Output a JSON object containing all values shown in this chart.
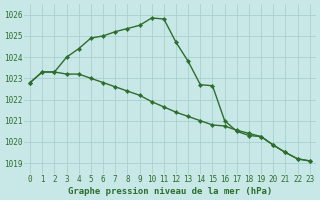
{
  "bg_color": "#c8e8e8",
  "grid_color": "#a8d0d0",
  "line_color": "#2d6e2d",
  "s1_y": [
    1022.8,
    1023.3,
    1023.3,
    1024.0,
    1024.4,
    1024.9,
    1025.0,
    1025.2,
    1025.35,
    1025.5,
    1025.85,
    1025.8,
    1024.7,
    1023.8,
    1022.7,
    1022.65,
    1021.0,
    1020.5,
    1020.3,
    1020.25,
    1019.85,
    1019.5,
    1019.2,
    1019.1
  ],
  "s2_y": [
    1022.8,
    1023.3,
    1023.3,
    1023.2,
    1023.2,
    1023.0,
    1022.8,
    1022.6,
    1022.4,
    1022.2,
    1021.9,
    1021.65,
    1021.4,
    1021.2,
    1021.0,
    1020.8,
    1020.75,
    1020.55,
    1020.4,
    1020.25,
    1019.85,
    1019.5,
    1019.2,
    1019.1
  ],
  "x": [
    0,
    1,
    2,
    3,
    4,
    5,
    6,
    7,
    8,
    9,
    10,
    11,
    12,
    13,
    14,
    15,
    16,
    17,
    18,
    19,
    20,
    21,
    22,
    23
  ],
  "ylim": [
    1018.5,
    1026.5
  ],
  "yticks": [
    1019,
    1020,
    1021,
    1022,
    1023,
    1024,
    1025,
    1026
  ],
  "xlabel": "Graphe pression niveau de la mer (hPa)",
  "markersize": 2.2,
  "linewidth": 1.0,
  "tick_fontsize": 5.5,
  "label_fontsize": 6.5
}
